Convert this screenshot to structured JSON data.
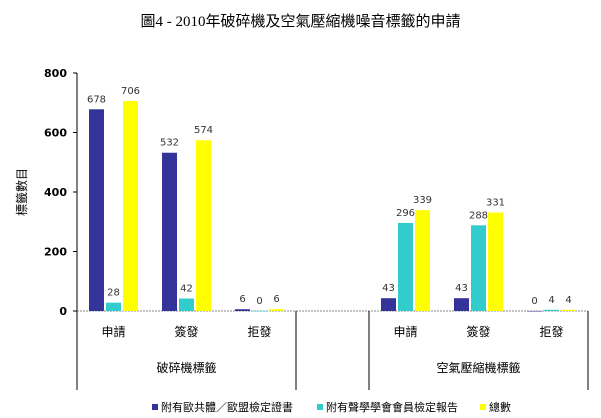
{
  "chart_data": {
    "type": "bar",
    "title": "圖4 - 2010年破碎機及空氣壓縮機噪音標籤的申請",
    "ylabel": "標籤數目",
    "xlabel": "",
    "ylim": [
      0,
      800
    ],
    "yticks": [
      0,
      200,
      400,
      600,
      800
    ],
    "grid": false,
    "legend_position": "bottom",
    "groups": [
      {
        "name": "破碎機標籤",
        "categories": [
          "申請",
          "簽發",
          "拒發"
        ]
      },
      {
        "name": "空氣壓縮機標籤",
        "categories": [
          "申請",
          "簽發",
          "拒發"
        ]
      }
    ],
    "series": [
      {
        "name": "附有歐共體／歐盟檢定證書",
        "color": "#333399",
        "values": [
          [
            678,
            532,
            6
          ],
          [
            43,
            43,
            0
          ]
        ]
      },
      {
        "name": "附有聲學學會會員檢定報告",
        "color": "#33CCCC",
        "values": [
          [
            28,
            42,
            0
          ],
          [
            296,
            288,
            4
          ]
        ]
      },
      {
        "name": "總數",
        "color": "#FFFF00",
        "values": [
          [
            706,
            574,
            6
          ],
          [
            339,
            331,
            4
          ]
        ]
      }
    ]
  }
}
